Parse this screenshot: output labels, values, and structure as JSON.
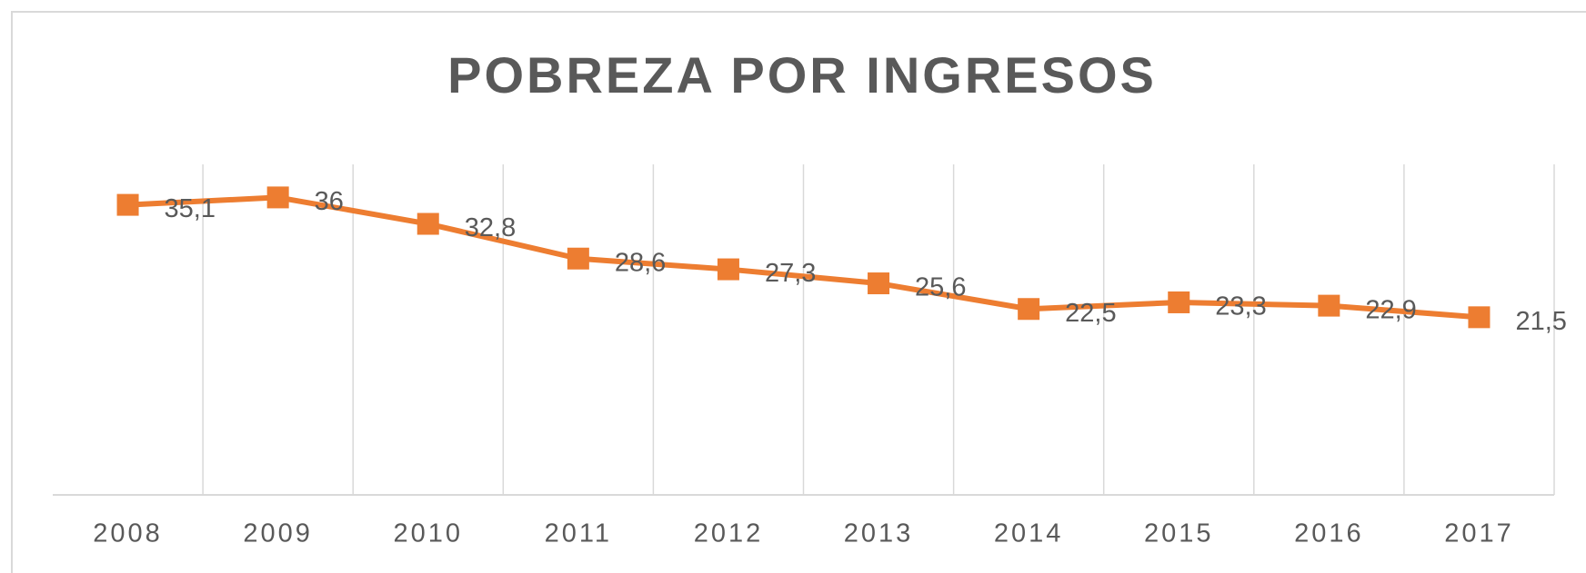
{
  "chart_data": {
    "type": "line",
    "title": "POBREZA POR INGRESOS",
    "categories": [
      "2008",
      "2009",
      "2010",
      "2011",
      "2012",
      "2013",
      "2014",
      "2015",
      "2016",
      "2017"
    ],
    "series": [
      {
        "name": "Pobreza por ingresos",
        "color": "#ed7d31",
        "values": [
          35.1,
          36,
          32.8,
          28.6,
          27.3,
          25.6,
          22.5,
          23.3,
          22.9,
          21.5
        ],
        "value_labels": [
          "35,1",
          "36",
          "32,8",
          "28,6",
          "27,3",
          "25,6",
          "22,5",
          "23,3",
          "22,9",
          "21,5"
        ]
      }
    ],
    "ylim": [
      0,
      40
    ],
    "grid": true
  }
}
